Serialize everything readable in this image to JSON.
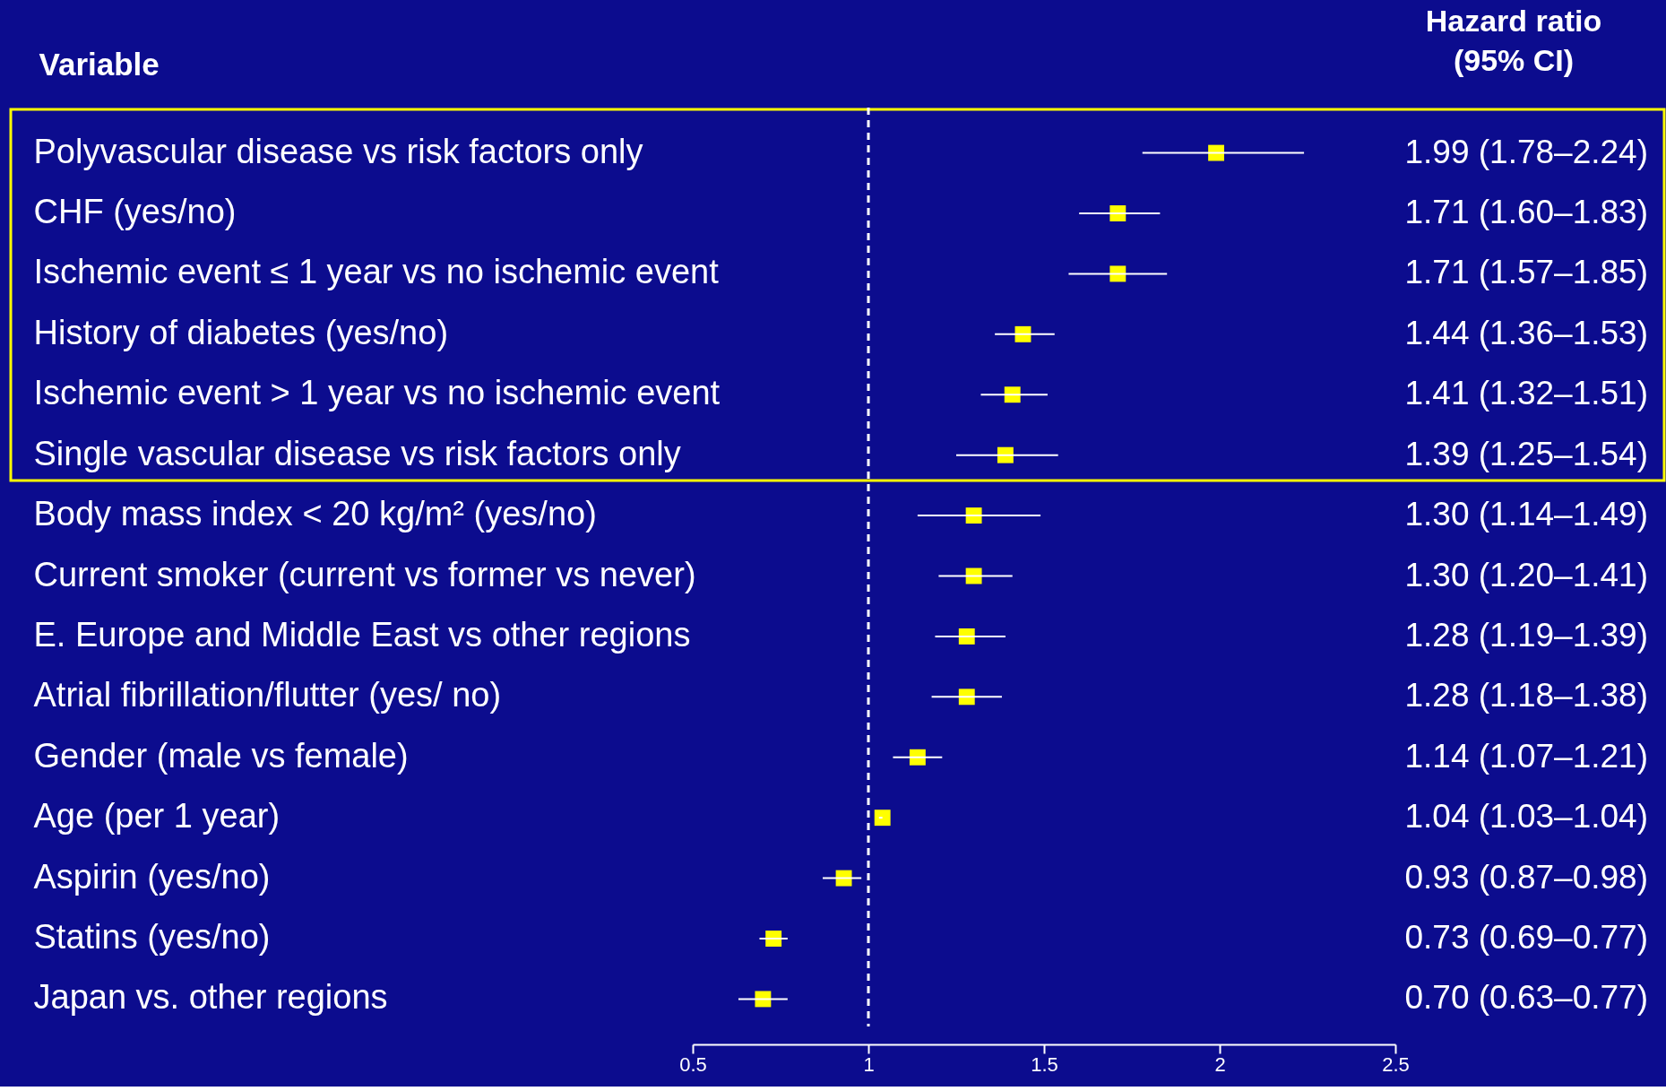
{
  "chart_data": {
    "type": "scatter",
    "orientation": "horizontal",
    "ylabel": "Variable",
    "annotations": [
      "Hazard ratio\n(95% CI)"
    ],
    "categories": [
      "Polyvascular disease vs risk factors only",
      "CHF (yes/no)",
      "Ischemic event ≤ 1 year vs no ischemic event",
      "History of diabetes  (yes/no)",
      "Ischemic event > 1 year vs no ischemic event",
      "Single vascular disease vs risk factors only",
      "Body mass index  < 20 kg/m² (yes/no)",
      "Current smoker   (current vs former vs never)",
      "E. Europe and Middle East vs other regions",
      "Atrial fibrillation/flutter (yes/ no)",
      "Gender (male vs female)",
      "Age (per 1 year)",
      "Aspirin (yes/no)",
      "Statins (yes/no)",
      "Japan vs. other regions"
    ],
    "series": [
      {
        "color": "#ffff00",
        "values": [
          1.99,
          1.71,
          1.71,
          1.44,
          1.41,
          1.39,
          1.3,
          1.3,
          1.28,
          1.28,
          1.14,
          1.04,
          0.93,
          0.73,
          0.7
        ],
        "errors": [
          [
            1.78,
            2.24
          ],
          [
            1.6,
            1.83
          ],
          [
            1.57,
            1.85
          ],
          [
            1.36,
            1.53
          ],
          [
            1.32,
            1.51
          ],
          [
            1.25,
            1.54
          ],
          [
            1.14,
            1.49
          ],
          [
            1.2,
            1.41
          ],
          [
            1.19,
            1.39
          ],
          [
            1.18,
            1.38
          ],
          [
            1.07,
            1.21
          ],
          [
            1.03,
            1.04
          ],
          [
            0.87,
            0.98
          ],
          [
            0.69,
            0.77
          ],
          [
            0.63,
            0.77
          ]
        ],
        "value_labels": [
          "1.99 (1.78–2.24)",
          "1.71 (1.60–1.83)",
          "1.71 (1.57–1.85)",
          "1.44 (1.36–1.53)",
          "1.41 (1.32–1.51)",
          "1.39 (1.25–1.54)",
          "1.30 (1.14–1.49)",
          "1.30 (1.20–1.41)",
          "1.28 (1.19–1.39)",
          "1.28 (1.18–1.38)",
          "1.14 (1.07–1.21)",
          "1.04 (1.03–1.04)",
          "0.93 (0.87–0.98)",
          "0.73 (0.69–0.77)",
          "0.70 (0.63–0.77)"
        ]
      }
    ],
    "xlim": [
      0.5,
      2.5
    ],
    "xticks": [
      0.5,
      1,
      1.5,
      2,
      2.5
    ],
    "ref_lines": [
      {
        "axis": "x",
        "value": 1,
        "color": "#ffffff",
        "line_style": "dashed"
      }
    ],
    "marker": "square",
    "grid": false
  }
}
